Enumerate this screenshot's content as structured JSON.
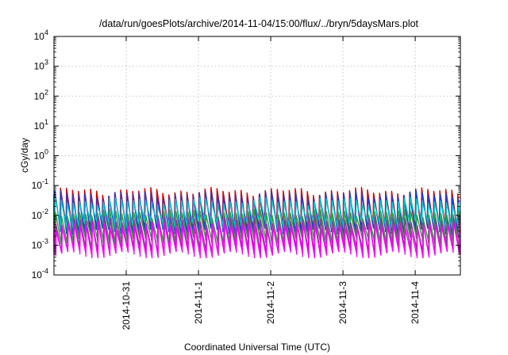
{
  "chart_data": {
    "type": "line",
    "title": "/data/run/goesPlots/archive/2014-11-04/15:00/flux/../bryn/5daysMars.plot",
    "xlabel": "Coordinated Universal Time (UTC)",
    "ylabel": "cGy/day",
    "x_range": [
      "2014-10-30T00:00",
      "2014-11-04T15:00"
    ],
    "x_ticks": [
      "2014-10-31",
      "2014-11-1",
      "2014-11-2",
      "2014-11-3",
      "2014-11-4"
    ],
    "x_tick_dates": [
      "2014-10-31T00:00",
      "2014-11-01T00:00",
      "2014-11-02T00:00",
      "2014-11-03T00:00",
      "2014-11-04T00:00"
    ],
    "y_scale": "log",
    "ylim": [
      0.0001,
      10000
    ],
    "y_ticks": [
      {
        "base": "10",
        "exp": "-4"
      },
      {
        "base": "10",
        "exp": "-3"
      },
      {
        "base": "10",
        "exp": "-2"
      },
      {
        "base": "10",
        "exp": "-1"
      },
      {
        "base": "10",
        "exp": "0"
      },
      {
        "base": "10",
        "exp": "1"
      },
      {
        "base": "10",
        "exp": "2"
      },
      {
        "base": "10",
        "exp": "3"
      },
      {
        "base": "10",
        "exp": "4"
      }
    ],
    "grid": true,
    "legend": "none",
    "pattern": {
      "sawtooth_period_hours": 2,
      "description": "repeating sawtooth with sharp rise and gradual decay"
    },
    "series": [
      {
        "color": "#d40000",
        "peak": 0.065,
        "trough": 0.004
      },
      {
        "color": "#1f3fd8",
        "peak": 0.05,
        "trough": 0.003
      },
      {
        "color": "#00c8d2",
        "peak": 0.03,
        "trough": 0.005
      },
      {
        "color": "#2f9e3a",
        "peak": 0.012,
        "trough": 0.0015
      },
      {
        "color": "#9a2fa0",
        "peak": 0.007,
        "trough": 0.0007
      },
      {
        "color": "#ff00ff",
        "peak": 0.0045,
        "trough": 0.0005
      }
    ]
  }
}
